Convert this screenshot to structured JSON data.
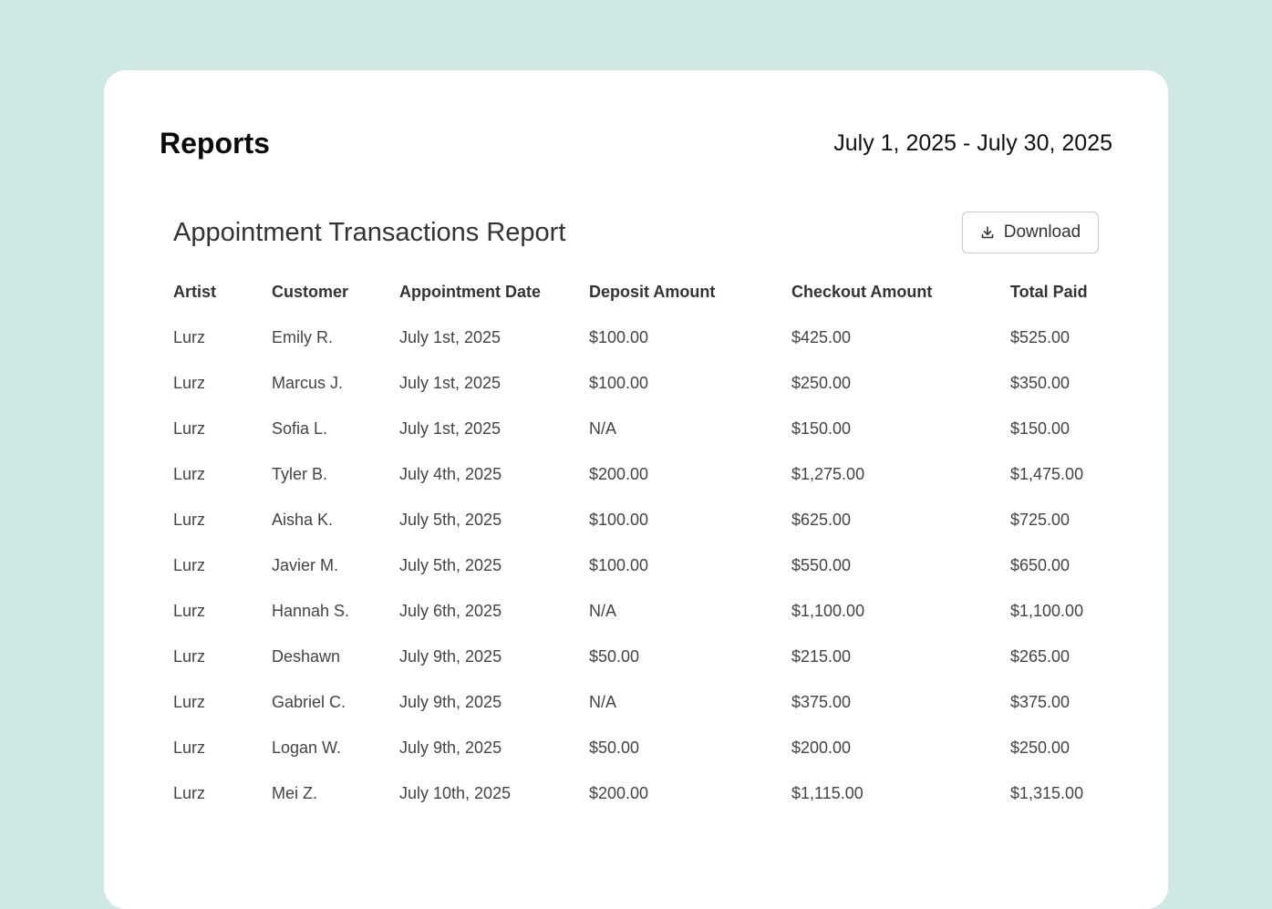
{
  "header": {
    "title": "Reports",
    "date_range": "July 1, 2025 - July 30, 2025"
  },
  "report": {
    "title": "Appointment Transactions Report",
    "download_label": "Download",
    "download_icon": "download-icon",
    "columns": [
      "Artist",
      "Customer",
      "Appointment Date",
      "Deposit Amount",
      "Checkout Amount",
      "Total Paid"
    ],
    "rows": [
      [
        "Lurz",
        "Emily R.",
        "July 1st, 2025",
        "$100.00",
        "$425.00",
        "$525.00"
      ],
      [
        "Lurz",
        "Marcus J.",
        "July 1st, 2025",
        "$100.00",
        "$250.00",
        "$350.00"
      ],
      [
        "Lurz",
        "Sofia L.",
        "July 1st, 2025",
        "N/A",
        "$150.00",
        "$150.00"
      ],
      [
        "Lurz",
        "Tyler B.",
        "July 4th, 2025",
        "$200.00",
        "$1,275.00",
        "$1,475.00"
      ],
      [
        "Lurz",
        "Aisha K.",
        "July 5th, 2025",
        "$100.00",
        "$625.00",
        "$725.00"
      ],
      [
        "Lurz",
        "Javier M.",
        "July 5th, 2025",
        "$100.00",
        "$550.00",
        "$650.00"
      ],
      [
        "Lurz",
        "Hannah S.",
        "July 6th, 2025",
        "N/A",
        "$1,100.00",
        "$1,100.00"
      ],
      [
        "Lurz",
        "Deshawn",
        "July 9th, 2025",
        "$50.00",
        "$215.00",
        "$265.00"
      ],
      [
        "Lurz",
        "Gabriel C.",
        "July 9th, 2025",
        "N/A",
        "$375.00",
        "$375.00"
      ],
      [
        "Lurz",
        "Logan W.",
        "July 9th, 2025",
        "$50.00",
        "$200.00",
        "$250.00"
      ],
      [
        "Lurz",
        "Mei Z.",
        "July 10th, 2025",
        "$200.00",
        "$1,115.00",
        "$1,315.00"
      ]
    ]
  },
  "colors": {
    "background": "#cfe8e4",
    "card": "#ffffff",
    "text": "#333333"
  }
}
